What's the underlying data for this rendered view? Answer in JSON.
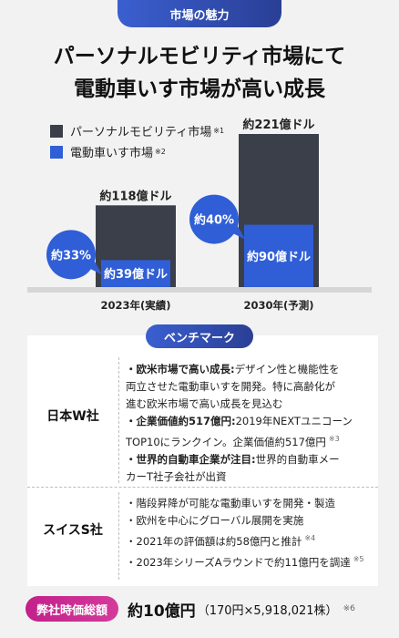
{
  "header": {
    "badge": "市場の魅力",
    "title_line1": "パーソナルモビリティ市場にて",
    "title_line2": "電動車いす市場が高い成長"
  },
  "colors": {
    "dark_series": "#3b3f4a",
    "blue_series": "#2f5ed6",
    "bubble": "#2f5ed6",
    "footer_pill": "#c92a90"
  },
  "chart_data": {
    "type": "bar",
    "categories": [
      "2023年(実績)",
      "2030年(予測)"
    ],
    "series": [
      {
        "name": "パーソナルモビリティ市場",
        "note": "※1",
        "values": [
          118,
          221
        ],
        "labels": [
          "約118億ドル",
          "約221億ドル"
        ]
      },
      {
        "name": "電動車いす市場",
        "note": "※2",
        "values": [
          39,
          90
        ],
        "labels": [
          "約39億ドル",
          "約90億ドル"
        ]
      }
    ],
    "shares": [
      "約33%",
      "約40%"
    ],
    "ylim": [
      0,
      221
    ]
  },
  "benchmark": {
    "title": "ベンチマーク",
    "companies": [
      {
        "name": "日本W社",
        "lines": [
          [
            {
              "t": "・欧米市場で高い成長:",
              "b": true
            },
            {
              "t": "デザイン性と機能性を"
            }
          ],
          [
            {
              "t": "両立させた電動車いすを開発。特に高齢化が"
            }
          ],
          [
            {
              "t": "進む欧米市場で高い成長を見込む"
            }
          ],
          [
            {
              "t": "・企業価値約517億円:",
              "b": true
            },
            {
              "t": "2019年NEXTユニコーン"
            }
          ],
          [
            {
              "t": "TOP10にランクイン。企業価値約517億円"
            },
            {
              "t": "※3",
              "n": true
            }
          ],
          [
            {
              "t": "・世界的自動車企業が注目:",
              "b": true
            },
            {
              "t": "世界的自動車メー"
            }
          ],
          [
            {
              "t": "カーT社子会社が出資"
            }
          ]
        ]
      },
      {
        "name": "スイスS社",
        "lines": [
          [
            {
              "t": "・階段昇降が可能な電動車いすを開発・製造"
            }
          ],
          [
            {
              "t": "・欧州を中心にグローバル展開を実施"
            }
          ],
          [
            {
              "t": "・2021年の評価額は約58億円と推計"
            },
            {
              "t": "※4",
              "n": true
            }
          ],
          [
            {
              "t": "・2023年シリーズAラウンドで約11億円を調達"
            },
            {
              "t": "※5",
              "n": true
            }
          ]
        ]
      }
    ]
  },
  "footer": {
    "label": "弊社時価総額",
    "value": "約10億円",
    "detail": "（170円×5,918,021株）",
    "note": "※6"
  }
}
